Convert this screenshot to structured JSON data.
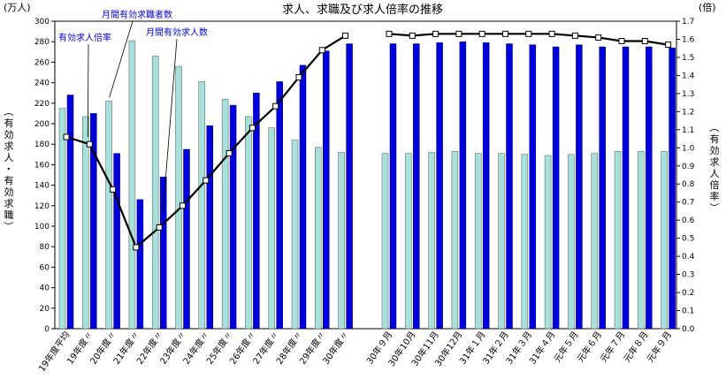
{
  "chart_data": {
    "type": "bar",
    "title": "求人、求職及び求人倍率の推移",
    "left_axis": {
      "unit": "(万人)",
      "label": "（有効求人・有効求職）",
      "ylim": [
        0,
        300
      ],
      "ticks": [
        0,
        20,
        40,
        60,
        80,
        100,
        120,
        140,
        160,
        180,
        200,
        220,
        240,
        260,
        280,
        300
      ]
    },
    "right_axis": {
      "unit": "(倍)",
      "label": "（有効求人倍率）",
      "ylim": [
        0,
        1.7
      ],
      "ticks": [
        "0.0",
        "0.1",
        "0.2",
        "0.3",
        "0.4",
        "0.5",
        "0.6",
        "0.7",
        "0.8",
        "0.9",
        "1.0",
        "1.1",
        "1.2",
        "1.3",
        "1.4",
        "1.5",
        "1.6",
        "1.7"
      ]
    },
    "categories": [
      "19年度平均",
      "19年度〃",
      "20年度〃",
      "21年度〃",
      "22年度〃",
      "23年度〃",
      "24年度〃",
      "25年度〃",
      "26年度〃",
      "27年度〃",
      "28年度〃",
      "29年度〃",
      "30年度〃",
      "30年９月",
      "30年10月",
      "30年11月",
      "30年12月",
      "31年１月",
      "31年２月",
      "31年３月",
      "31年４月",
      "元年５月",
      "元年６月",
      "元年７月",
      "元年８月",
      "元年９月"
    ],
    "annual_count": 13,
    "series": [
      {
        "name": "月間有効求職者数",
        "color": "#a8e0dc",
        "values": [
          215,
          207,
          222,
          281,
          266,
          256,
          241,
          224,
          207,
          196,
          184,
          177,
          172,
          171,
          171,
          172,
          173,
          171,
          171,
          170,
          169,
          170,
          171,
          173,
          173,
          173
        ]
      },
      {
        "name": "月間有効求人数",
        "color": "#0000dd",
        "values": [
          228,
          210,
          171,
          126,
          148,
          175,
          198,
          218,
          230,
          241,
          257,
          271,
          278,
          278,
          278,
          279,
          280,
          279,
          278,
          277,
          275,
          277,
          275,
          275,
          275,
          274
        ]
      },
      {
        "name": "有効求人倍率",
        "color": "#000000",
        "values": [
          1.06,
          1.02,
          0.77,
          0.45,
          0.56,
          0.68,
          0.82,
          0.97,
          1.11,
          1.23,
          1.39,
          1.54,
          1.62,
          1.63,
          1.62,
          1.63,
          1.63,
          1.63,
          1.63,
          1.63,
          1.63,
          1.62,
          1.61,
          1.59,
          1.59,
          1.57
        ]
      }
    ],
    "legend_placement": "annotations with leader lines",
    "grid": false
  }
}
